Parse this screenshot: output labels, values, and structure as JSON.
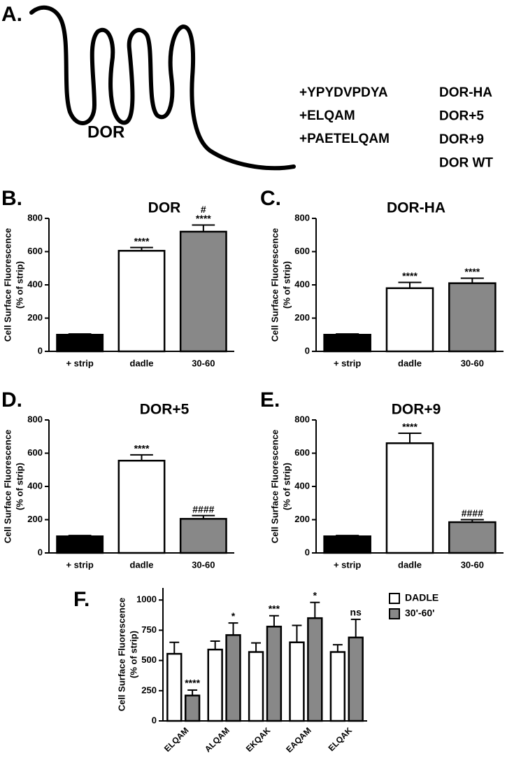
{
  "panel_a": {
    "label": "A.",
    "receptor": "DOR",
    "tags": [
      "+YPYDVPDYA",
      "+ELQAM",
      "+PAETELQAM"
    ],
    "constructs": [
      "DOR-HA",
      "DOR+5",
      "DOR+9",
      "DOR WT"
    ]
  },
  "chart_data": [
    {
      "type": "bar",
      "panel_label": "B.",
      "title": "DOR",
      "ylabel": [
        "Cell Surface Fluorescence",
        "(% of strip)"
      ],
      "categories": [
        "+ strip",
        "dadle",
        "30-60"
      ],
      "values": [
        100,
        605,
        720
      ],
      "errors": [
        5,
        20,
        40
      ],
      "colors": [
        "#000000",
        "#ffffff",
        "#888888"
      ],
      "annotations": [
        null,
        [
          "****"
        ],
        [
          "#",
          "****"
        ]
      ],
      "ylim": [
        0,
        800
      ],
      "yticks": [
        0,
        200,
        400,
        600,
        800
      ]
    },
    {
      "type": "bar",
      "panel_label": "C.",
      "title": "DOR-HA",
      "ylabel": [
        "Cell Surface Fluorescence",
        "(% of strip)"
      ],
      "categories": [
        "+ strip",
        "dadle",
        "30-60"
      ],
      "values": [
        100,
        380,
        410
      ],
      "errors": [
        5,
        35,
        30
      ],
      "colors": [
        "#000000",
        "#ffffff",
        "#888888"
      ],
      "annotations": [
        null,
        [
          "****"
        ],
        [
          "****"
        ]
      ],
      "ylim": [
        0,
        800
      ],
      "yticks": [
        0,
        200,
        400,
        600,
        800
      ]
    },
    {
      "type": "bar",
      "panel_label": "D.",
      "title": "DOR+5",
      "ylabel": [
        "Cell Surface Fluorescence",
        "(% of strip)"
      ],
      "categories": [
        "+ strip",
        "dadle",
        "30-60"
      ],
      "values": [
        100,
        555,
        205
      ],
      "errors": [
        5,
        35,
        20
      ],
      "colors": [
        "#000000",
        "#ffffff",
        "#888888"
      ],
      "annotations": [
        null,
        [
          "****"
        ],
        [
          "####"
        ]
      ],
      "ylim": [
        0,
        800
      ],
      "yticks": [
        0,
        200,
        400,
        600,
        800
      ]
    },
    {
      "type": "bar",
      "panel_label": "E.",
      "title": "DOR+9",
      "ylabel": [
        "Cell Surface Fluorescence",
        "(% of strip)"
      ],
      "categories": [
        "+ strip",
        "dadle",
        "30-60"
      ],
      "values": [
        100,
        660,
        185
      ],
      "errors": [
        5,
        60,
        15
      ],
      "colors": [
        "#000000",
        "#ffffff",
        "#888888"
      ],
      "annotations": [
        null,
        [
          "****"
        ],
        [
          "####"
        ]
      ],
      "ylim": [
        0,
        800
      ],
      "yticks": [
        0,
        200,
        400,
        600,
        800
      ]
    },
    {
      "type": "grouped-bar",
      "panel_label": "F.",
      "ylabel": [
        "Cell Surface Fluorescence",
        "(% of strip)"
      ],
      "categories": [
        "ELQAM",
        "ALQAM",
        "EKQAK",
        "EAQAM",
        "ELQAK"
      ],
      "series": [
        {
          "name": "DADLE",
          "color": "#ffffff",
          "values": [
            555,
            590,
            570,
            650,
            570
          ],
          "errors": [
            95,
            70,
            75,
            140,
            60
          ]
        },
        {
          "name": "30'-60'",
          "color": "#888888",
          "values": [
            210,
            710,
            780,
            850,
            690
          ],
          "errors": [
            45,
            100,
            90,
            130,
            150
          ],
          "annotations": [
            "****",
            "*",
            "***",
            "*",
            "ns"
          ]
        }
      ],
      "legend": "right",
      "ylim": [
        0,
        1100
      ],
      "yticks": [
        0,
        250,
        500,
        750,
        1000
      ]
    }
  ]
}
